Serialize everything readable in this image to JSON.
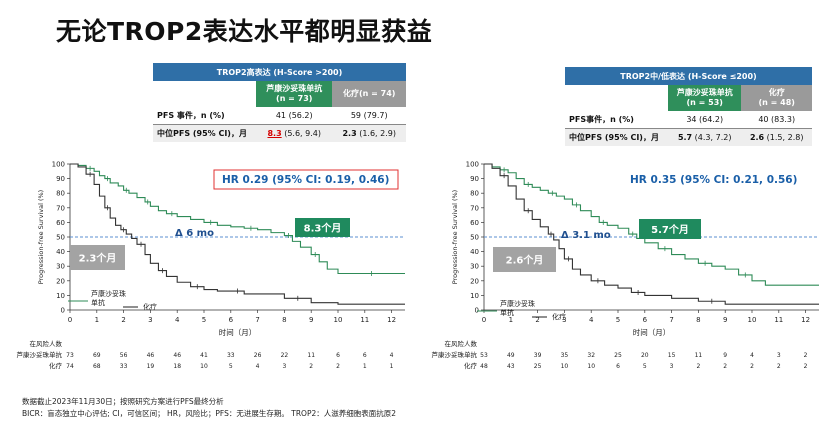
{
  "title": "无论TROP2表达水平都明显获益",
  "footnote1": "数据截止2023年11月30日；按照研究方案进行PFS最终分析",
  "footnote2": "BICR：盲态独立中心评估; CI，可信区间； HR，风险比；PFS：无进展生存期。 TROP2：人滋养细胞表面抗原2",
  "panels": [
    {
      "table": {
        "header": "TROP2高表达 (H-Score >200)",
        "arm_a": "芦康沙妥珠单抗",
        "arm_a_n": "(n = 73)",
        "arm_b": "化疗(n = 74)",
        "arm_b_n": "",
        "row1_label": "PFS 事件，n (%)",
        "row1_a": "41 (56.2)",
        "row1_b": "59 (79.7)",
        "row2_label": "中位PFS (95% CI)，月",
        "row2_a_median": "8.3",
        "row2_a_ci": "(5.6, 9.4)",
        "row2_b_median": "2.3",
        "row2_b_ci": "(1.6, 2.9)"
      },
      "hr_text": "HR 0.29 (95% CI: 0.19, 0.46)",
      "hr_boxed": true,
      "delta_text": "Δ 6 mo",
      "median_a_label": "8.3个月",
      "median_b_label": "2.3个月",
      "legend_a": "芦康沙妥珠单抗",
      "legend_b": "化疗",
      "risk": {
        "title": "在风险人数",
        "arm_a_label": "芦康沙妥珠单抗",
        "arm_b_label": "化疗",
        "arm_a": [
          "73",
          "69",
          "56",
          "46",
          "46",
          "41",
          "33",
          "26",
          "22",
          "11",
          "6",
          "6",
          "4"
        ],
        "arm_b": [
          "74",
          "68",
          "33",
          "19",
          "18",
          "10",
          "5",
          "4",
          "3",
          "2",
          "2",
          "1",
          "1"
        ]
      }
    },
    {
      "table": {
        "header": "TROP2中/低表达 (H-Score ≤200)",
        "arm_a": "芦康沙妥珠单抗",
        "arm_a_n": "(n = 53)",
        "arm_b": "化疗",
        "arm_b_n": "(n = 48)",
        "row1_label": "PFS事件，n (%)",
        "row1_a": "34 (64.2)",
        "row1_b": "40 (83.3)",
        "row2_label": "中位PFS (95% CI)，月",
        "row2_a_median": "5.7",
        "row2_a_ci": "(4.3, 7.2)",
        "row2_b_median": "2.6",
        "row2_b_ci": "(1.5, 2.8)"
      },
      "hr_text": "HR 0.35 (95% CI: 0.21, 0.56)",
      "hr_boxed": false,
      "delta_text": "Δ 3.1 mo",
      "median_a_label": "5.7个月",
      "median_b_label": "2.6个月",
      "legend_a": "芦康沙妥珠单抗",
      "legend_b": "化疗",
      "risk": {
        "title": "在风险人数",
        "arm_a_label": "芦康沙妥珠单抗",
        "arm_b_label": "化疗",
        "arm_a": [
          "53",
          "49",
          "39",
          "35",
          "32",
          "25",
          "20",
          "15",
          "11",
          "9",
          "4",
          "3",
          "2"
        ],
        "arm_b": [
          "48",
          "43",
          "25",
          "10",
          "10",
          "6",
          "5",
          "3",
          "2",
          "2",
          "2",
          "2",
          "2"
        ]
      }
    }
  ],
  "chart_data": [
    {
      "type": "line",
      "xlabel": "时间（月）",
      "ylabel": "Progression-free Survival (%)",
      "xlim": [
        0,
        12.5
      ],
      "ylim": [
        0,
        100
      ],
      "xticks": [
        0,
        1,
        2,
        3,
        4,
        5,
        6,
        7,
        8,
        9,
        10,
        11,
        12
      ],
      "yticks": [
        0,
        10,
        20,
        30,
        40,
        50,
        60,
        70,
        80,
        90,
        100
      ],
      "reference_line_y": 50,
      "colors": {
        "arm_a": "#2e8b57",
        "arm_b": "#333333",
        "ref": "#5b8fd0"
      },
      "series": [
        {
          "name": "芦康沙妥珠单抗",
          "x": [
            0,
            0.3,
            0.6,
            0.9,
            1.1,
            1.3,
            1.5,
            1.8,
            2.0,
            2.2,
            2.5,
            2.8,
            3.0,
            3.3,
            3.6,
            4.0,
            4.5,
            5.0,
            5.5,
            6.0,
            6.5,
            7.0,
            7.5,
            8.0,
            8.3,
            8.6,
            9.0,
            9.3,
            9.6,
            10.0,
            12.5
          ],
          "y": [
            100,
            99,
            97,
            95,
            92,
            90,
            87,
            85,
            82,
            80,
            77,
            74,
            71,
            68,
            66,
            64,
            62,
            60,
            58,
            57,
            56,
            55,
            53,
            51,
            47,
            43,
            38,
            33,
            28,
            25,
            25
          ]
        },
        {
          "name": "化疗",
          "x": [
            0,
            0.3,
            0.6,
            0.9,
            1.1,
            1.3,
            1.5,
            1.7,
            1.9,
            2.1,
            2.3,
            2.5,
            2.8,
            3.0,
            3.3,
            3.6,
            4.0,
            4.5,
            5.0,
            5.5,
            6.0,
            6.5,
            7.0,
            8.0,
            9.0,
            10.0,
            12.5
          ],
          "y": [
            100,
            98,
            93,
            86,
            78,
            70,
            63,
            58,
            55,
            52,
            49,
            45,
            38,
            32,
            27,
            23,
            19,
            16,
            14,
            13,
            13,
            11,
            11,
            8,
            5,
            4,
            4
          ]
        }
      ]
    },
    {
      "type": "line",
      "xlabel": "时间（月）",
      "ylabel": "Progression-free Survival (%)",
      "xlim": [
        0,
        12.5
      ],
      "ylim": [
        0,
        100
      ],
      "xticks": [
        0,
        1,
        2,
        3,
        4,
        5,
        6,
        7,
        8,
        9,
        10,
        11,
        12
      ],
      "yticks": [
        0,
        10,
        20,
        30,
        40,
        50,
        60,
        70,
        80,
        90,
        100
      ],
      "reference_line_y": 50,
      "colors": {
        "arm_a": "#2e8b57",
        "arm_b": "#333333",
        "ref": "#5b8fd0"
      },
      "series": [
        {
          "name": "芦康沙妥珠单抗",
          "x": [
            0,
            0.3,
            0.6,
            0.9,
            1.2,
            1.5,
            1.8,
            2.1,
            2.4,
            2.7,
            3.0,
            3.3,
            3.6,
            4.0,
            4.3,
            4.6,
            5.0,
            5.4,
            5.7,
            6.0,
            6.5,
            7.0,
            7.5,
            8.0,
            8.5,
            9.0,
            9.5,
            10.0,
            10.5,
            12.5
          ],
          "y": [
            100,
            98,
            96,
            94,
            90,
            86,
            84,
            82,
            80,
            78,
            76,
            72,
            68,
            64,
            60,
            58,
            56,
            52,
            49,
            46,
            42,
            38,
            35,
            32,
            30,
            28,
            24,
            20,
            17,
            17
          ]
        },
        {
          "name": "化疗",
          "x": [
            0,
            0.3,
            0.6,
            0.9,
            1.2,
            1.5,
            1.8,
            2.1,
            2.4,
            2.6,
            2.8,
            3.0,
            3.3,
            3.6,
            4.0,
            4.5,
            5.0,
            5.5,
            6.0,
            7.0,
            8.0,
            9.0,
            12.5
          ],
          "y": [
            100,
            97,
            92,
            85,
            76,
            68,
            62,
            57,
            52,
            48,
            42,
            35,
            28,
            24,
            20,
            17,
            15,
            12,
            10,
            8,
            6,
            4,
            4
          ]
        }
      ]
    }
  ]
}
